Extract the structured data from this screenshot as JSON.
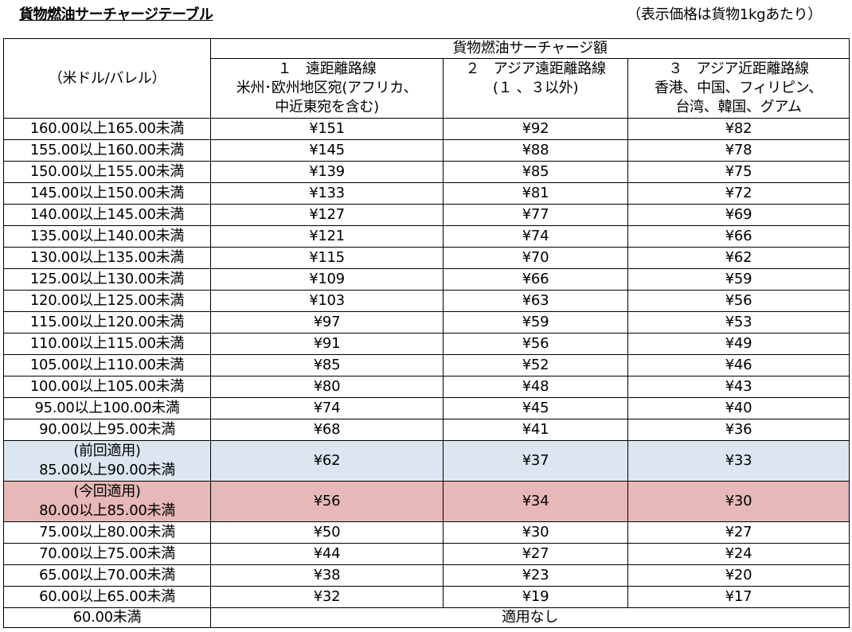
{
  "title": "貨物燃油サーチャージテーブル",
  "note": "（表示価格は貨物1kgあたり）",
  "header": {
    "unit_label": "（米ドル/バレル）",
    "group_label": "貨物燃油サーチャージ額",
    "routes": [
      {
        "line1": "１　遠距離路線",
        "line2": "米州･欧州地区宛(アフリカ、",
        "line3": "中近東宛を含む)"
      },
      {
        "line1": "２　アジア遠距離路線",
        "line2": "(１ 、３以外)",
        "line3": ""
      },
      {
        "line1": "３　アジア近距離路線",
        "line2": "香港、中国、フィリピン、",
        "line3": "台湾、韓国、グアム"
      }
    ]
  },
  "rows": [
    {
      "range": "160.00以上165.00未満",
      "r1": "¥151",
      "r2": "¥92",
      "r3": "¥82"
    },
    {
      "range": "155.00以上160.00未満",
      "r1": "¥145",
      "r2": "¥88",
      "r3": "¥78"
    },
    {
      "range": "150.00以上155.00未満",
      "r1": "¥139",
      "r2": "¥85",
      "r3": "¥75"
    },
    {
      "range": "145.00以上150.00未満",
      "r1": "¥133",
      "r2": "¥81",
      "r3": "¥72"
    },
    {
      "range": "140.00以上145.00未満",
      "r1": "¥127",
      "r2": "¥77",
      "r3": "¥69"
    },
    {
      "range": "135.00以上140.00未満",
      "r1": "¥121",
      "r2": "¥74",
      "r3": "¥66"
    },
    {
      "range": "130.00以上135.00未満",
      "r1": "¥115",
      "r2": "¥70",
      "r3": "¥62"
    },
    {
      "range": "125.00以上130.00未満",
      "r1": "¥109",
      "r2": "¥66",
      "r3": "¥59"
    },
    {
      "range": "120.00以上125.00未満",
      "r1": "¥103",
      "r2": "¥63",
      "r3": "¥56"
    },
    {
      "range": "115.00以上120.00未満",
      "r1": "¥97",
      "r2": "¥59",
      "r3": "¥53"
    },
    {
      "range": "110.00以上115.00未満",
      "r1": "¥91",
      "r2": "¥56",
      "r3": "¥49"
    },
    {
      "range": "105.00以上110.00未満",
      "r1": "¥85",
      "r2": "¥52",
      "r3": "¥46"
    },
    {
      "range": "100.00以上105.00未満",
      "r1": "¥80",
      "r2": "¥48",
      "r3": "¥43"
    },
    {
      "range": "95.00以上100.00未満",
      "r1": "¥74",
      "r2": "¥45",
      "r3": "¥40"
    },
    {
      "range": "90.00以上95.00未満",
      "r1": "¥68",
      "r2": "¥41",
      "r3": "¥36"
    }
  ],
  "previous": {
    "tag": "(前回適用)",
    "range": "85.00以上90.00未満",
    "r1": "¥62",
    "r2": "¥37",
    "r3": "¥33"
  },
  "current": {
    "tag": "(今回適用)",
    "range": "80.00以上85.00未満",
    "r1": "¥56",
    "r2": "¥34",
    "r3": "¥30"
  },
  "rows_lower": [
    {
      "range": "75.00以上80.00未満",
      "r1": "¥50",
      "r2": "¥30",
      "r3": "¥27"
    },
    {
      "range": "70.00以上75.00未満",
      "r1": "¥44",
      "r2": "¥27",
      "r3": "¥24"
    },
    {
      "range": "65.00以上70.00未満",
      "r1": "¥38",
      "r2": "¥23",
      "r3": "¥20"
    },
    {
      "range": "60.00以上65.00未満",
      "r1": "¥32",
      "r2": "¥19",
      "r3": "¥17"
    }
  ],
  "last": {
    "range": "60.00未満",
    "value": "適用なし"
  },
  "colors": {
    "previous_row": "#dce6f1",
    "current_row": "#e6b8b7"
  }
}
